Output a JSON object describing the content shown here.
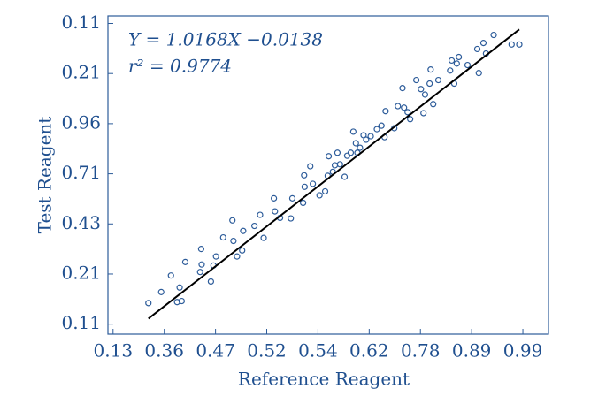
{
  "chart_data": {
    "type": "scatter",
    "xlabel": "Reference Reagent",
    "ylabel": "Test Reagent",
    "annotations": [
      "Y = 1.0168X −0.0138",
      "r² = 0.9774"
    ],
    "axis_color": "#2d5c9a",
    "text_color": "#1f4f8f",
    "xlim": [
      -0.1,
      8.5
    ],
    "ylim": [
      -0.2,
      6.15
    ],
    "xticks": [
      {
        "value": 0,
        "label": "0.13"
      },
      {
        "value": 1,
        "label": "0.36"
      },
      {
        "value": 2,
        "label": "0.47"
      },
      {
        "value": 3,
        "label": "0.52"
      },
      {
        "value": 4,
        "label": "0.54"
      },
      {
        "value": 5,
        "label": "0.62"
      },
      {
        "value": 6,
        "label": "0.78"
      },
      {
        "value": 7,
        "label": "0.89"
      },
      {
        "value": 8,
        "label": "0.99"
      }
    ],
    "yticks": [
      {
        "value": 0,
        "label": "0.11"
      },
      {
        "value": 1,
        "label": "0.21"
      },
      {
        "value": 2,
        "label": "0.43"
      },
      {
        "value": 3,
        "label": "0.71"
      },
      {
        "value": 4,
        "label": "0.96"
      },
      {
        "value": 5,
        "label": "0.21"
      },
      {
        "value": 6,
        "label": "0.11"
      }
    ],
    "series": [
      {
        "color": "#2d5c9a",
        "x": [
          0.69,
          0.94,
          1.13,
          1.25,
          1.3,
          1.34,
          1.41,
          1.7,
          1.73,
          1.72,
          1.91,
          1.96,
          2.01,
          2.15,
          2.33,
          2.35,
          2.42,
          2.52,
          2.54,
          2.76,
          2.87,
          2.94,
          3.14,
          3.16,
          3.26,
          3.47,
          3.5,
          3.71,
          3.73,
          3.74,
          3.85,
          3.9,
          4.03,
          4.14,
          4.19,
          4.21,
          4.29,
          4.33,
          4.38,
          4.43,
          4.52,
          4.57,
          4.64,
          4.69,
          4.74,
          4.77,
          4.82,
          4.89,
          4.94,
          5.03,
          5.15,
          5.24,
          5.3,
          5.32,
          5.49,
          5.56,
          5.65,
          5.68,
          5.75,
          5.8,
          5.92,
          6.01,
          6.06,
          6.09,
          6.18,
          6.2,
          6.25,
          6.35,
          6.58,
          6.61,
          6.66,
          6.71,
          6.75,
          6.92,
          7.11,
          7.14,
          7.23,
          7.28,
          7.43,
          7.78,
          7.93
        ],
        "values": [
          0.42,
          0.64,
          0.97,
          0.44,
          0.73,
          0.46,
          1.24,
          1.04,
          1.19,
          1.5,
          0.85,
          1.17,
          1.35,
          1.73,
          2.07,
          1.66,
          1.35,
          1.47,
          1.86,
          1.96,
          2.18,
          1.72,
          2.51,
          2.25,
          2.12,
          2.11,
          2.51,
          2.42,
          2.97,
          2.74,
          3.15,
          2.8,
          2.57,
          2.65,
          2.96,
          3.35,
          3.04,
          3.17,
          3.42,
          3.19,
          2.94,
          3.36,
          3.42,
          3.84,
          3.61,
          3.42,
          3.52,
          3.77,
          3.68,
          3.75,
          3.89,
          3.96,
          3.73,
          4.25,
          3.91,
          4.35,
          4.71,
          4.32,
          4.23,
          4.09,
          4.87,
          4.69,
          4.21,
          4.58,
          4.8,
          5.08,
          4.39,
          4.87,
          5.06,
          5.26,
          4.8,
          5.2,
          5.33,
          5.17,
          5.49,
          5.01,
          5.61,
          5.4,
          5.77,
          5.58,
          5.58
        ]
      }
    ],
    "fit_line": {
      "color": "#000000",
      "x": [
        0.69,
        7.93
      ],
      "values": [
        0.11,
        5.88
      ]
    }
  }
}
